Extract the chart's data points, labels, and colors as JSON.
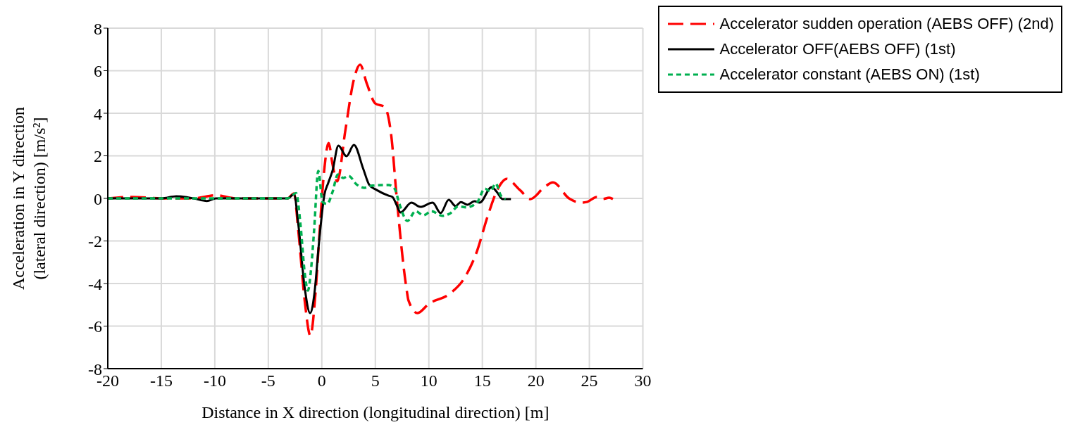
{
  "chart_data": {
    "type": "line",
    "xlabel": "Distance in X direction (longitudinal direction) [m]",
    "ylabel": "Acceleration in Y direction (lateral direction) [m/s²]",
    "xlim": [
      -20,
      30
    ],
    "xticks": [
      -20,
      -15,
      -10,
      -5,
      0,
      5,
      10,
      15,
      20,
      25,
      30
    ],
    "ylim": [
      -8,
      8
    ],
    "yticks": [
      -8,
      -6,
      -4,
      -2,
      0,
      2,
      4,
      6,
      8
    ],
    "grid": true,
    "legend": "top right",
    "marker": "none",
    "series": [
      {
        "name": "Accelerator sudden operation (AEBS OFF) (2nd)",
        "color": "#ff0000",
        "line_style": "dashed",
        "x": [
          -20,
          -17.75,
          -15,
          -12,
          -9.9,
          -8,
          -5,
          -3.2,
          -2.6,
          -2.2,
          -1.6,
          -1.07,
          -0.6,
          -0.25,
          0.2,
          0.64,
          1.0,
          1.44,
          2.2,
          3.0,
          3.58,
          4.2,
          5.0,
          5.86,
          6.5,
          6.99,
          7.9,
          8.1,
          8.94,
          9.98,
          12.0,
          13.25,
          14.5,
          15.5,
          16.5,
          17.26,
          18.5,
          19.5,
          20.74,
          21.6,
          23.1,
          24.2,
          24.75,
          25.7,
          26.25,
          26.85,
          27.2
        ],
        "values": [
          0,
          0.07,
          0,
          0,
          0.15,
          0,
          0,
          0,
          0.23,
          -1.5,
          -4.8,
          -6.45,
          -4.5,
          -1.9,
          1.2,
          2.6,
          1.6,
          0.8,
          3.2,
          5.6,
          6.28,
          5.4,
          4.46,
          4.3,
          2.9,
          0.07,
          -4.2,
          -4.8,
          -5.39,
          -4.96,
          -4.46,
          -3.8,
          -2.48,
          -0.83,
          0.5,
          0.92,
          0.4,
          -0.03,
          0.5,
          0.75,
          0,
          -0.2,
          -0.17,
          0.07,
          -0.03,
          0.03,
          -0.03
        ]
      },
      {
        "name": "Accelerator OFF(AEBS OFF) (1st)",
        "color": "#000000",
        "line_style": "solid",
        "x": [
          -20,
          -15,
          -13.6,
          -12,
          -10.74,
          -9.9,
          -5,
          -3.2,
          -2.6,
          -2.2,
          -1.6,
          -1.1,
          -0.7,
          -0.25,
          0.24,
          0.6,
          1.0,
          1.55,
          2.3,
          3.0,
          3.87,
          4.44,
          5.1,
          6.24,
          6.6,
          7.0,
          7.36,
          8.37,
          9.2,
          10.36,
          11.1,
          11.86,
          12.5,
          13.0,
          13.6,
          14.26,
          14.75,
          15.87,
          16.36,
          16.88,
          17.67
        ],
        "values": [
          0,
          0,
          0.1,
          0,
          -0.12,
          0,
          0,
          0,
          0.2,
          -1.2,
          -4.2,
          -5.39,
          -4.5,
          -2.0,
          0.17,
          0.73,
          1.3,
          2.48,
          1.98,
          2.51,
          1.39,
          0.63,
          0.4,
          0.13,
          0.07,
          -0.32,
          -0.66,
          -0.2,
          -0.4,
          -0.2,
          -0.69,
          -0.07,
          -0.36,
          -0.17,
          -0.3,
          -0.13,
          -0.2,
          0.53,
          0.3,
          -0.03,
          -0.03
        ]
      },
      {
        "name": "Accelerator constant (AEBS ON) (1st)",
        "color": "#00b050",
        "line_style": "dotted",
        "x": [
          -20,
          -15,
          -10,
          -5,
          -3.2,
          -2.4,
          -2.0,
          -1.6,
          -1.3,
          -1.0,
          -0.72,
          -0.33,
          0.07,
          0.5,
          1.0,
          1.5,
          2.0,
          2.5,
          3.24,
          4.0,
          4.74,
          6.24,
          6.8,
          7.25,
          8.0,
          8.75,
          9.5,
          10.25,
          11.26,
          12.0,
          12.76,
          13.5,
          14.5,
          15.23,
          15.76,
          16.24,
          16.73,
          17.18
        ],
        "values": [
          0,
          0,
          0,
          0,
          0,
          0.25,
          -1.2,
          -3.5,
          -4.33,
          -3.3,
          -1.49,
          1.29,
          -0.17,
          -0.26,
          0.3,
          1.12,
          0.96,
          1.06,
          0.66,
          0.5,
          0.6,
          0.63,
          0.46,
          -0.26,
          -1.06,
          -0.6,
          -0.79,
          -0.6,
          -0.82,
          -0.7,
          -0.37,
          -0.42,
          -0.2,
          0.46,
          0.33,
          0.7,
          0.13,
          -0.03
        ]
      }
    ]
  }
}
